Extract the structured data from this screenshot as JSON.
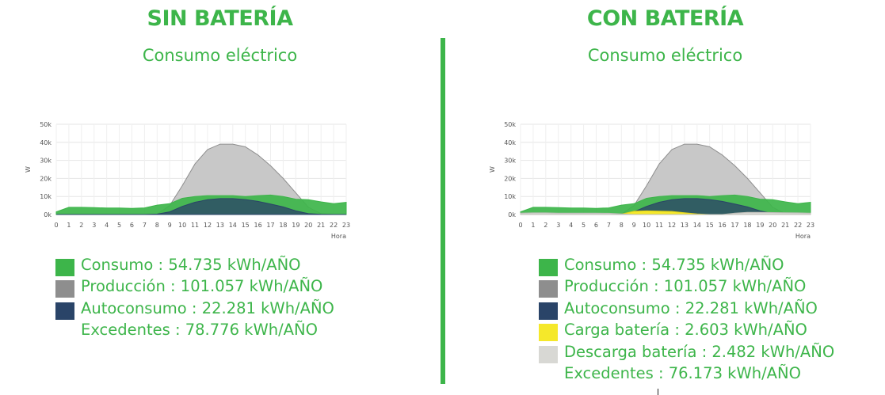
{
  "panels": [
    {
      "heading": "SIN BATERÍA",
      "subtitle": "Consumo eléctrico",
      "legend": [
        {
          "label": "Consumo : 54.735 kWh/AÑO",
          "color": "#3db54a",
          "swatch": true
        },
        {
          "label": "Producción : 101.057 kWh/AÑO",
          "color": "#8e8e8e",
          "swatch": true
        },
        {
          "label": "Autoconsumo : 22.281 kWh/AÑO",
          "color": "#2a4468",
          "swatch": true
        },
        {
          "label": "Excedentes : 78.776 kWh/AÑO",
          "color": null,
          "swatch": false
        }
      ]
    },
    {
      "heading": "CON BATERÍA",
      "subtitle": "Consumo eléctrico",
      "legend": [
        {
          "label": "Consumo : 54.735 kWh/AÑO",
          "color": "#3db54a",
          "swatch": true
        },
        {
          "label": "Producción : 101.057 kWh/AÑO",
          "color": "#8e8e8e",
          "swatch": true
        },
        {
          "label": "Autoconsumo : 22.281 kWh/AÑO",
          "color": "#2a4468",
          "swatch": true
        },
        {
          "label": "Carga batería : 2.603 kWh/AÑO",
          "color": "#f5e82a",
          "swatch": true
        },
        {
          "label": "Descarga batería : 2.482 kWh/AÑO",
          "color": "#d8d8d4",
          "swatch": true
        },
        {
          "label": "Excedentes : 76.173 kWh/AÑO",
          "color": null,
          "swatch": false
        }
      ]
    }
  ],
  "chart_data": [
    {
      "type": "area",
      "title": "Consumo eléctrico",
      "xlabel": "Hora",
      "ylabel": "W",
      "x": [
        0,
        1,
        2,
        3,
        4,
        5,
        6,
        7,
        8,
        9,
        10,
        11,
        12,
        13,
        14,
        15,
        16,
        17,
        18,
        19,
        20,
        21,
        22,
        23
      ],
      "yticks": [
        "0k",
        "10k",
        "20k",
        "30k",
        "40k",
        "50k"
      ],
      "ylim": [
        0,
        50000
      ],
      "grid": true,
      "series": [
        {
          "name": "Producción",
          "color": "#c8c8c8",
          "stroke": "#8e8e8e",
          "values": [
            0,
            0,
            0,
            0,
            0,
            0,
            0,
            0,
            200,
            5000,
            16000,
            28000,
            36000,
            39000,
            39000,
            37500,
            33000,
            27000,
            20000,
            12000,
            4000,
            500,
            0,
            0
          ]
        },
        {
          "name": "Consumo",
          "color": "#3db54a",
          "stroke": "#3db54a",
          "values": [
            1500,
            4000,
            4000,
            3800,
            3600,
            3600,
            3400,
            3700,
            5200,
            6000,
            9000,
            10000,
            10500,
            10500,
            10500,
            10000,
            10500,
            10800,
            10000,
            8500,
            8200,
            7000,
            6000,
            6800
          ]
        },
        {
          "name": "Autoconsumo",
          "color": "#2a4468",
          "stroke": "#2a4468",
          "values": [
            0,
            0,
            0,
            0,
            0,
            0,
            0,
            0,
            200,
            1500,
            4500,
            6800,
            8200,
            8800,
            8800,
            8300,
            7300,
            5800,
            4200,
            2000,
            500,
            100,
            0,
            0
          ]
        }
      ]
    },
    {
      "type": "area",
      "title": "Consumo eléctrico",
      "xlabel": "Hora",
      "ylabel": "W",
      "x": [
        0,
        1,
        2,
        3,
        4,
        5,
        6,
        7,
        8,
        9,
        10,
        11,
        12,
        13,
        14,
        15,
        16,
        17,
        18,
        19,
        20,
        21,
        22,
        23
      ],
      "yticks": [
        "0k",
        "10k",
        "20k",
        "30k",
        "40k",
        "50k"
      ],
      "ylim": [
        0,
        50000
      ],
      "grid": true,
      "series": [
        {
          "name": "Producción",
          "color": "#c8c8c8",
          "stroke": "#8e8e8e",
          "values": [
            0,
            0,
            0,
            0,
            0,
            0,
            0,
            0,
            200,
            5000,
            16000,
            28000,
            36000,
            39000,
            39000,
            37500,
            33000,
            27000,
            20000,
            12000,
            4000,
            500,
            0,
            0
          ]
        },
        {
          "name": "Consumo",
          "color": "#3db54a",
          "stroke": "#3db54a",
          "values": [
            1500,
            4000,
            4000,
            3800,
            3600,
            3600,
            3400,
            3700,
            5200,
            6000,
            9000,
            10000,
            10500,
            10500,
            10500,
            10000,
            10500,
            10800,
            10000,
            8500,
            8200,
            7000,
            6000,
            6800
          ]
        },
        {
          "name": "Autoconsumo",
          "color": "#2a4468",
          "stroke": "#2a4468",
          "values": [
            0,
            0,
            0,
            0,
            0,
            0,
            0,
            0,
            200,
            1500,
            4500,
            6800,
            8200,
            8800,
            8800,
            8300,
            7300,
            5800,
            4200,
            2000,
            500,
            100,
            0,
            0
          ]
        },
        {
          "name": "Carga batería",
          "color": "#f5e82a",
          "stroke": "#e0d21e",
          "values": [
            0,
            0,
            0,
            0,
            0,
            0,
            0,
            0,
            200,
            1800,
            2000,
            1900,
            1700,
            1000,
            300,
            0,
            0,
            0,
            0,
            0,
            0,
            0,
            0,
            0
          ]
        },
        {
          "name": "Descarga batería",
          "color": "#d8d8d4",
          "stroke": "#bcbcb6",
          "values": [
            800,
            900,
            900,
            800,
            800,
            800,
            800,
            700,
            300,
            0,
            0,
            0,
            0,
            0,
            0,
            0,
            0,
            800,
            1200,
            1200,
            1100,
            1000,
            900,
            800
          ]
        }
      ]
    }
  ]
}
